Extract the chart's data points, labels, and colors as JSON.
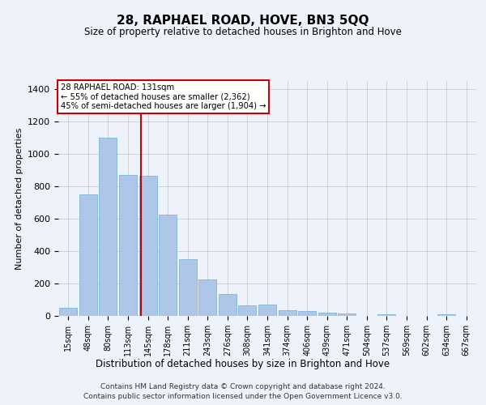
{
  "title": "28, RAPHAEL ROAD, HOVE, BN3 5QQ",
  "subtitle": "Size of property relative to detached houses in Brighton and Hove",
  "xlabel": "Distribution of detached houses by size in Brighton and Hove",
  "ylabel": "Number of detached properties",
  "categories": [
    "15sqm",
    "48sqm",
    "80sqm",
    "113sqm",
    "145sqm",
    "178sqm",
    "211sqm",
    "243sqm",
    "276sqm",
    "308sqm",
    "341sqm",
    "374sqm",
    "406sqm",
    "439sqm",
    "471sqm",
    "504sqm",
    "537sqm",
    "569sqm",
    "602sqm",
    "634sqm",
    "667sqm"
  ],
  "values": [
    50,
    750,
    1100,
    870,
    865,
    625,
    350,
    225,
    135,
    65,
    70,
    35,
    30,
    20,
    15,
    0,
    10,
    0,
    0,
    10,
    0
  ],
  "bar_color": "#aec6e8",
  "bar_edge_color": "#6baed6",
  "grid_color": "#cccccc",
  "background_color": "#eef3fb",
  "red_line_x": 3.67,
  "red_line_color": "#cc0000",
  "annotation_text": "28 RAPHAEL ROAD: 131sqm\n← 55% of detached houses are smaller (2,362)\n45% of semi-detached houses are larger (1,904) →",
  "annotation_box_color": "#ffffff",
  "annotation_box_edge": "#cc0000",
  "ylim": [
    0,
    1450
  ],
  "yticks": [
    0,
    200,
    400,
    600,
    800,
    1000,
    1200,
    1400
  ],
  "footer1": "Contains HM Land Registry data © Crown copyright and database right 2024.",
  "footer2": "Contains public sector information licensed under the Open Government Licence v3.0."
}
